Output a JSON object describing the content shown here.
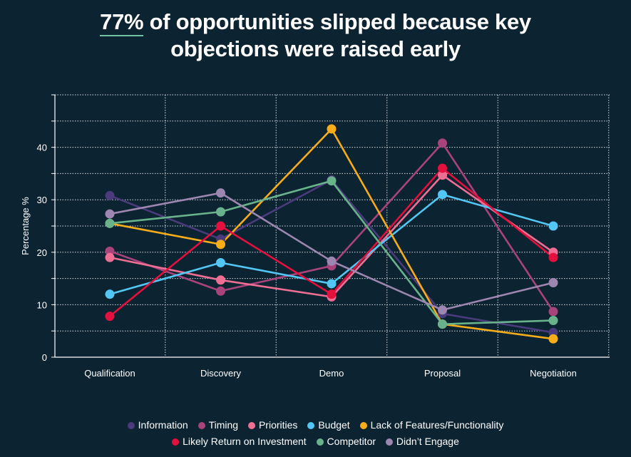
{
  "title": {
    "highlight": "77%",
    "line1_rest": " of opportunities slipped because key",
    "line2": "objections were raised early"
  },
  "chart_data": {
    "type": "line",
    "categories": [
      "Qualification",
      "Discovery",
      "Demo",
      "Proposal",
      "Negotiation"
    ],
    "ylabel": "Percentage %",
    "ylim": [
      0,
      50
    ],
    "yticks": [
      0,
      10,
      20,
      30,
      40
    ],
    "grid": true,
    "legend_position": "bottom",
    "series": [
      {
        "name": "Information",
        "color": "#4b3a7c",
        "values": [
          30.8,
          22.5,
          33.8,
          8.3,
          4.7
        ]
      },
      {
        "name": "Timing",
        "color": "#a9437e",
        "values": [
          20.2,
          12.6,
          17.4,
          40.8,
          8.7
        ]
      },
      {
        "name": "Priorities",
        "color": "#ef6f94",
        "values": [
          19.0,
          14.7,
          11.5,
          34.7,
          20.0
        ]
      },
      {
        "name": "Budget",
        "color": "#52c7f4",
        "values": [
          12.0,
          18.0,
          14.0,
          31.0,
          25.0
        ]
      },
      {
        "name": "Lack of Features/Functionality",
        "color": "#f7ad19",
        "values": [
          25.5,
          21.5,
          43.5,
          6.3,
          3.5
        ]
      },
      {
        "name": "Likely Return on Investment",
        "color": "#e4103d",
        "values": [
          7.8,
          25.0,
          12.0,
          36.0,
          19.0
        ]
      },
      {
        "name": "Competitor",
        "color": "#69b38c",
        "values": [
          25.5,
          27.7,
          33.6,
          6.3,
          7.0
        ]
      },
      {
        "name": "Didn't Engage",
        "color": "#9d86b0",
        "values": [
          27.3,
          31.3,
          18.3,
          9.0,
          14.2
        ]
      }
    ]
  },
  "legend": {
    "row1": [
      {
        "label": "Information",
        "color": "#4b3a7c"
      },
      {
        "label": "Timing",
        "color": "#a9437e"
      },
      {
        "label": "Priorities",
        "color": "#ef6f94"
      },
      {
        "label": "Budget",
        "color": "#52c7f4"
      },
      {
        "label": "Lack of Features/Functionality",
        "color": "#f7ad19"
      }
    ],
    "row2": [
      {
        "label": "Likely Return on Investment",
        "color": "#e4103d"
      },
      {
        "label": "Competitor",
        "color": "#69b38c"
      },
      {
        "label": "Didn’t Engage",
        "color": "#9d86b0"
      }
    ]
  }
}
